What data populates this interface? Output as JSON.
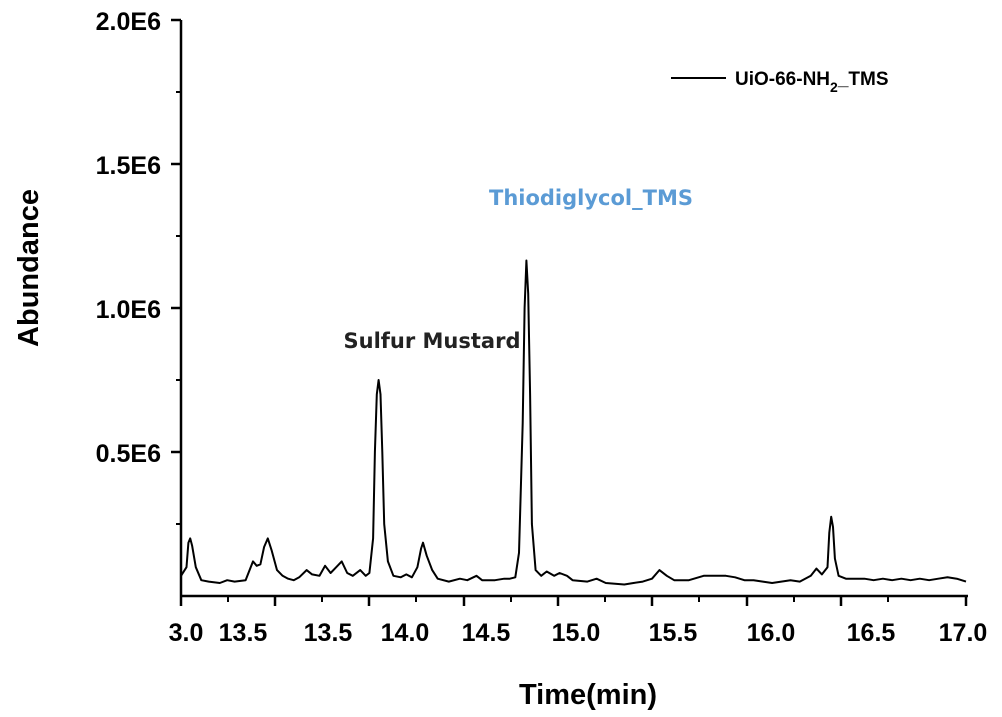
{
  "chart_data": {
    "type": "line",
    "title": "",
    "xlabel": "Time(min)",
    "ylabel": "Abundance",
    "x_tick_labels": [
      "3.0",
      "13.5",
      "13.5",
      "14.0",
      "14.5",
      "15.0",
      "15.5",
      "16.0",
      "16.5",
      "17.0"
    ],
    "y_tick_labels": [
      "0.5E6",
      "1.0E6",
      "1.5E6",
      "2.0E6"
    ],
    "xlim": [
      12.75,
      17.0
    ],
    "ylim": [
      0,
      2000000
    ],
    "grid": false,
    "legend": {
      "position": "top-right",
      "entries": [
        {
          "label": "UiO-66-NH",
          "subscript": "2",
          "suffix": "_TMS"
        }
      ]
    },
    "annotations": [
      {
        "text": "Sulfur Mustard",
        "color": "#222222"
      },
      {
        "text": "Thiodiglycol_TMS",
        "color": "#5B9BD5"
      }
    ],
    "series": [
      {
        "name": "UiO-66-NH2_TMS",
        "color": "#000000",
        "points": [
          [
            12.75,
            70000
          ],
          [
            12.78,
            100000
          ],
          [
            12.79,
            185000
          ],
          [
            12.8,
            200000
          ],
          [
            12.81,
            175000
          ],
          [
            12.83,
            100000
          ],
          [
            12.86,
            55000
          ],
          [
            12.9,
            50000
          ],
          [
            12.96,
            45000
          ],
          [
            13.0,
            55000
          ],
          [
            13.04,
            50000
          ],
          [
            13.1,
            55000
          ],
          [
            13.14,
            120000
          ],
          [
            13.16,
            105000
          ],
          [
            13.18,
            110000
          ],
          [
            13.2,
            170000
          ],
          [
            13.22,
            200000
          ],
          [
            13.24,
            160000
          ],
          [
            13.27,
            90000
          ],
          [
            13.3,
            70000
          ],
          [
            13.33,
            60000
          ],
          [
            13.36,
            55000
          ],
          [
            13.39,
            65000
          ],
          [
            13.43,
            90000
          ],
          [
            13.46,
            75000
          ],
          [
            13.5,
            70000
          ],
          [
            13.53,
            105000
          ],
          [
            13.56,
            80000
          ],
          [
            13.59,
            100000
          ],
          [
            13.62,
            120000
          ],
          [
            13.65,
            80000
          ],
          [
            13.68,
            70000
          ],
          [
            13.72,
            90000
          ],
          [
            13.75,
            70000
          ],
          [
            13.77,
            80000
          ],
          [
            13.79,
            200000
          ],
          [
            13.8,
            500000
          ],
          [
            13.81,
            700000
          ],
          [
            13.82,
            750000
          ],
          [
            13.83,
            700000
          ],
          [
            13.84,
            500000
          ],
          [
            13.85,
            250000
          ],
          [
            13.87,
            120000
          ],
          [
            13.9,
            70000
          ],
          [
            13.94,
            65000
          ],
          [
            13.97,
            75000
          ],
          [
            14.0,
            65000
          ],
          [
            14.03,
            100000
          ],
          [
            14.05,
            165000
          ],
          [
            14.06,
            185000
          ],
          [
            14.08,
            140000
          ],
          [
            14.11,
            90000
          ],
          [
            14.14,
            60000
          ],
          [
            14.2,
            50000
          ],
          [
            14.26,
            60000
          ],
          [
            14.3,
            55000
          ],
          [
            14.35,
            70000
          ],
          [
            14.38,
            55000
          ],
          [
            14.45,
            55000
          ],
          [
            14.5,
            60000
          ],
          [
            14.53,
            60000
          ],
          [
            14.56,
            65000
          ],
          [
            14.58,
            150000
          ],
          [
            14.6,
            600000
          ],
          [
            14.61,
            1000000
          ],
          [
            14.62,
            1165000
          ],
          [
            14.63,
            1050000
          ],
          [
            14.64,
            700000
          ],
          [
            14.65,
            250000
          ],
          [
            14.67,
            90000
          ],
          [
            14.7,
            70000
          ],
          [
            14.73,
            85000
          ],
          [
            14.77,
            70000
          ],
          [
            14.8,
            80000
          ],
          [
            14.84,
            70000
          ],
          [
            14.87,
            55000
          ],
          [
            14.95,
            50000
          ],
          [
            15.0,
            60000
          ],
          [
            15.05,
            45000
          ],
          [
            15.15,
            40000
          ],
          [
            15.2,
            45000
          ],
          [
            15.25,
            50000
          ],
          [
            15.3,
            60000
          ],
          [
            15.34,
            90000
          ],
          [
            15.38,
            70000
          ],
          [
            15.42,
            55000
          ],
          [
            15.5,
            55000
          ],
          [
            15.58,
            70000
          ],
          [
            15.65,
            70000
          ],
          [
            15.7,
            70000
          ],
          [
            15.75,
            65000
          ],
          [
            15.8,
            55000
          ],
          [
            15.85,
            55000
          ],
          [
            15.9,
            50000
          ],
          [
            15.95,
            45000
          ],
          [
            16.0,
            50000
          ],
          [
            16.05,
            55000
          ],
          [
            16.1,
            50000
          ],
          [
            16.16,
            70000
          ],
          [
            16.19,
            95000
          ],
          [
            16.22,
            75000
          ],
          [
            16.25,
            100000
          ],
          [
            16.26,
            220000
          ],
          [
            16.27,
            275000
          ],
          [
            16.28,
            240000
          ],
          [
            16.29,
            130000
          ],
          [
            16.31,
            70000
          ],
          [
            16.35,
            60000
          ],
          [
            16.4,
            60000
          ],
          [
            16.45,
            60000
          ],
          [
            16.5,
            55000
          ],
          [
            16.55,
            60000
          ],
          [
            16.6,
            55000
          ],
          [
            16.65,
            60000
          ],
          [
            16.7,
            55000
          ],
          [
            16.75,
            60000
          ],
          [
            16.8,
            55000
          ],
          [
            16.85,
            60000
          ],
          [
            16.9,
            65000
          ],
          [
            16.95,
            60000
          ],
          [
            17.0,
            50000
          ]
        ]
      }
    ]
  }
}
